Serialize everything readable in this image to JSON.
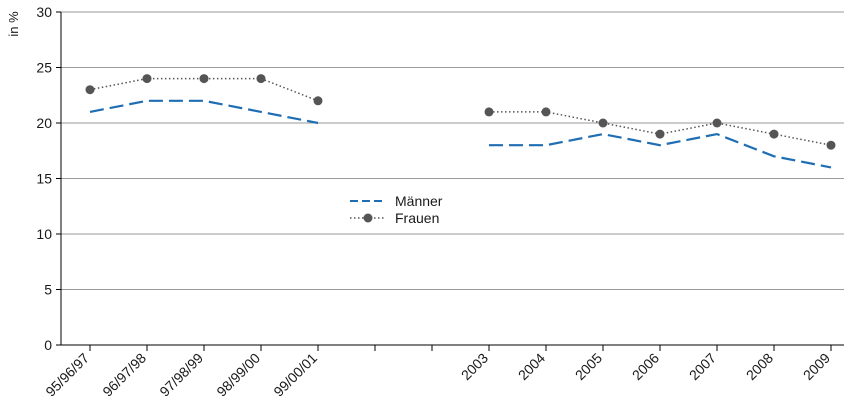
{
  "chart_data": {
    "type": "line",
    "title": "",
    "xlabel": "",
    "ylabel": "in %",
    "ylim": [
      0,
      30
    ],
    "yticks": [
      0,
      5,
      10,
      15,
      20,
      25,
      30
    ],
    "categories": [
      "95/96/97",
      "96/97/98",
      "97/98/99",
      "98/99/00",
      "99/00/01",
      "",
      "",
      "2003",
      "2004",
      "2005",
      "2006",
      "2007",
      "2008",
      "2009"
    ],
    "grid": "horizontal",
    "legend_position": "center",
    "series": [
      {
        "name": "Männer",
        "color": "#1f6eb4",
        "style": "dashed",
        "values": [
          21,
          22,
          22,
          21,
          20,
          null,
          null,
          18,
          18,
          19,
          18,
          19,
          17,
          16
        ]
      },
      {
        "name": "Frauen",
        "color": "#555555",
        "style": "dotted-markers",
        "values": [
          23,
          24,
          24,
          24,
          22,
          null,
          null,
          21,
          21,
          20,
          19,
          20,
          19,
          18
        ]
      }
    ]
  }
}
